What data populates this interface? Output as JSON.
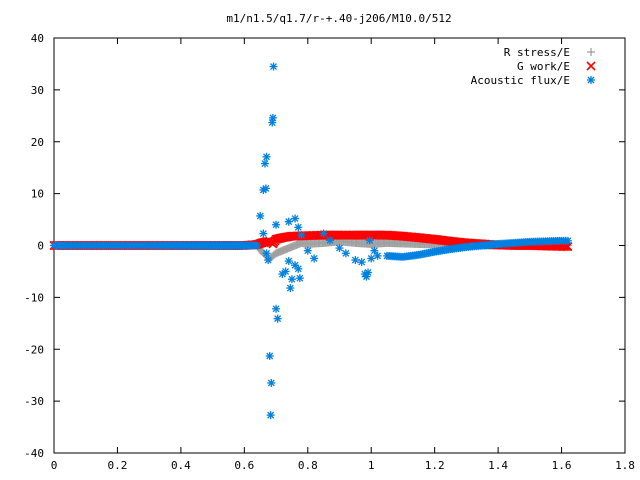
{
  "chart_data": {
    "type": "scatter",
    "title": "m1/n1.5/q1.7/r-+.40-j206/M10.0/512",
    "xlabel": "",
    "ylabel": "",
    "xlim": [
      0,
      1.8
    ],
    "ylim": [
      -40,
      40
    ],
    "grid": false,
    "legend_position": "top-right",
    "x_ticks": [
      "0",
      "0.2",
      "0.4",
      "0.6",
      "0.8",
      "1",
      "1.2",
      "1.4",
      "1.6",
      "1.8"
    ],
    "y_ticks": [
      "40",
      "30",
      "20",
      "10",
      "0",
      "-10",
      "-20",
      "-30",
      "-40"
    ],
    "series": [
      {
        "name": "R stress/E",
        "marker": "plus",
        "color": "#a0a0a0",
        "points": [
          [
            0.0,
            0.0
          ],
          [
            0.2,
            0.0
          ],
          [
            0.4,
            0.0
          ],
          [
            0.6,
            0.0
          ],
          [
            0.64,
            0.0
          ],
          [
            0.66,
            -1.5
          ],
          [
            0.68,
            -2.5
          ],
          [
            0.7,
            -1.5
          ],
          [
            0.72,
            -1.0
          ],
          [
            0.74,
            -0.5
          ],
          [
            0.76,
            0.0
          ],
          [
            0.78,
            0.5
          ],
          [
            0.8,
            0.3
          ],
          [
            0.85,
            0.5
          ],
          [
            0.9,
            0.8
          ],
          [
            0.95,
            0.5
          ],
          [
            1.0,
            0.3
          ],
          [
            1.05,
            0.5
          ],
          [
            1.1,
            0.4
          ],
          [
            1.2,
            0.2
          ],
          [
            1.3,
            0.0
          ],
          [
            1.4,
            0.0
          ],
          [
            1.5,
            0.0
          ],
          [
            1.62,
            0.0
          ]
        ]
      },
      {
        "name": "G work/E",
        "marker": "cross",
        "color": "#ff0000",
        "points": [
          [
            0.0,
            0.0
          ],
          [
            0.2,
            0.0
          ],
          [
            0.4,
            0.0
          ],
          [
            0.6,
            0.0
          ],
          [
            0.64,
            0.2
          ],
          [
            0.66,
            0.6
          ],
          [
            0.68,
            0.8
          ],
          [
            0.69,
            0.3
          ],
          [
            0.7,
            1.2
          ],
          [
            0.72,
            1.5
          ],
          [
            0.75,
            1.8
          ],
          [
            0.8,
            1.9
          ],
          [
            0.85,
            2.0
          ],
          [
            0.9,
            2.0
          ],
          [
            0.95,
            2.0
          ],
          [
            1.0,
            2.0
          ],
          [
            1.05,
            2.0
          ],
          [
            1.1,
            1.8
          ],
          [
            1.15,
            1.5
          ],
          [
            1.2,
            1.2
          ],
          [
            1.25,
            0.8
          ],
          [
            1.3,
            0.5
          ],
          [
            1.35,
            0.3
          ],
          [
            1.4,
            0.1
          ],
          [
            1.45,
            0.0
          ],
          [
            1.5,
            0.0
          ],
          [
            1.55,
            -0.1
          ],
          [
            1.62,
            -0.2
          ]
        ]
      },
      {
        "name": "Acoustic flux/E",
        "marker": "star",
        "color": "#0080e0",
        "points": [
          [
            0.0,
            0.0
          ],
          [
            0.05,
            0.0
          ],
          [
            0.1,
            0.0
          ],
          [
            0.15,
            0.0
          ],
          [
            0.2,
            0.0
          ],
          [
            0.25,
            0.0
          ],
          [
            0.3,
            0.0
          ],
          [
            0.35,
            0.0
          ],
          [
            0.4,
            0.0
          ],
          [
            0.45,
            0.0
          ],
          [
            0.5,
            0.0
          ],
          [
            0.55,
            0.0
          ],
          [
            0.6,
            0.0
          ],
          [
            0.64,
            0.0
          ],
          [
            0.65,
            5.7
          ],
          [
            0.66,
            10.7
          ],
          [
            0.665,
            15.8
          ],
          [
            0.67,
            17.1
          ],
          [
            0.668,
            11.0
          ],
          [
            0.66,
            2.3
          ],
          [
            0.67,
            -1.5
          ],
          [
            0.675,
            -2.8
          ],
          [
            0.68,
            -21.3
          ],
          [
            0.683,
            -32.7
          ],
          [
            0.685,
            -26.5
          ],
          [
            0.688,
            23.7
          ],
          [
            0.69,
            24.6
          ],
          [
            0.692,
            34.5
          ],
          [
            0.7,
            -12.2
          ],
          [
            0.705,
            -14.1
          ],
          [
            0.7,
            4.0
          ],
          [
            0.72,
            -5.5
          ],
          [
            0.73,
            -5.0
          ],
          [
            0.74,
            -3.0
          ],
          [
            0.745,
            -8.2
          ],
          [
            0.75,
            -6.5
          ],
          [
            0.76,
            -3.8
          ],
          [
            0.77,
            -4.5
          ],
          [
            0.775,
            -6.3
          ],
          [
            0.74,
            4.6
          ],
          [
            0.76,
            5.2
          ],
          [
            0.77,
            3.5
          ],
          [
            0.78,
            2.0
          ],
          [
            0.8,
            -1.0
          ],
          [
            0.82,
            -2.5
          ],
          [
            0.85,
            2.3
          ],
          [
            0.87,
            1.0
          ],
          [
            0.9,
            -0.5
          ],
          [
            0.92,
            -1.5
          ],
          [
            0.95,
            -2.8
          ],
          [
            0.97,
            -3.2
          ],
          [
            0.98,
            -5.5
          ],
          [
            0.985,
            -6.0
          ],
          [
            0.99,
            -5.2
          ],
          [
            0.995,
            1.0
          ],
          [
            1.0,
            -2.5
          ],
          [
            1.01,
            -1.0
          ],
          [
            1.02,
            -2.0
          ],
          [
            1.05,
            -2.0
          ],
          [
            1.1,
            -2.2
          ],
          [
            1.15,
            -1.8
          ],
          [
            1.2,
            -1.2
          ],
          [
            1.25,
            -0.7
          ],
          [
            1.3,
            -0.3
          ],
          [
            1.35,
            0.0
          ],
          [
            1.4,
            0.3
          ],
          [
            1.45,
            0.5
          ],
          [
            1.5,
            0.7
          ],
          [
            1.55,
            0.8
          ],
          [
            1.6,
            0.9
          ],
          [
            1.62,
            0.9
          ]
        ]
      }
    ]
  }
}
